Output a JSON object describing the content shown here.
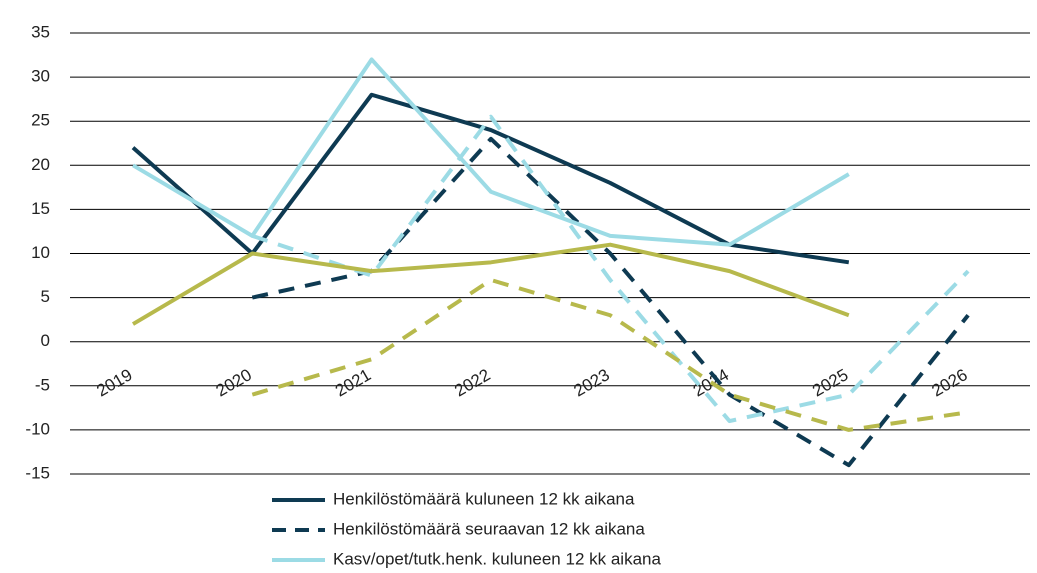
{
  "chart_data": {
    "type": "line",
    "categories": [
      "2019",
      "2020",
      "2021",
      "2022",
      "2023",
      "2024",
      "2025",
      "2026"
    ],
    "series": [
      {
        "name": "Henkilöstömäärä kuluneen 12 kk aikana",
        "color": "#0e3a52",
        "dashed": false,
        "values": [
          22,
          10,
          28,
          24,
          18,
          11,
          9,
          null
        ]
      },
      {
        "name": "Henkilöstömäärä seuraavan 12 kk aikana",
        "color": "#0e3a52",
        "dashed": true,
        "values": [
          null,
          5,
          8,
          23,
          10,
          -6,
          -14,
          3
        ]
      },
      {
        "name": "Kasv/opet/tutk.henk. kuluneen 12 kk aikana",
        "color": "#9cdbe5",
        "dashed": false,
        "values": [
          20,
          12,
          32,
          17,
          12,
          11,
          19,
          null
        ]
      },
      {
        "color": "#9cdbe5",
        "dashed": true,
        "values": [
          null,
          12,
          7.5,
          25.5,
          7,
          -9,
          -6,
          8
        ]
      },
      {
        "color": "#b7b94c",
        "dashed": false,
        "values": [
          2,
          10,
          8,
          9,
          11,
          8,
          3,
          null
        ]
      },
      {
        "color": "#b7b94c",
        "dashed": true,
        "values": [
          null,
          -6,
          -2,
          7,
          3,
          -6,
          -10,
          -8
        ]
      }
    ],
    "ylim": [
      -15,
      35
    ],
    "yticks": [
      -15,
      -10,
      -5,
      0,
      5,
      10,
      15,
      20,
      25,
      30,
      35
    ],
    "grid": true
  }
}
